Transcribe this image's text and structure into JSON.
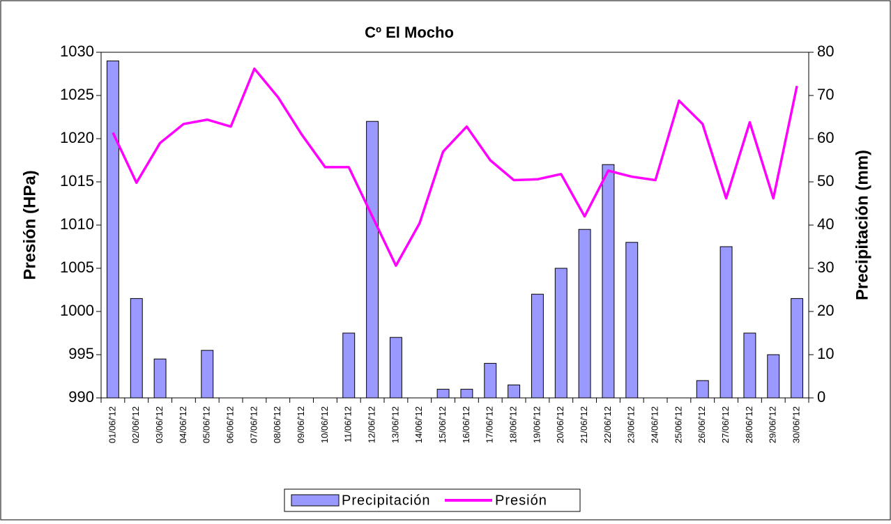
{
  "chart_data": {
    "type": "combo",
    "title": "Cº El Mocho",
    "y_label": "Presión (HPa)",
    "y2_label": "Precipitación (mm)",
    "categories": [
      "01/06/'12",
      "02/06/'12",
      "03/06/'12",
      "04/06/'12",
      "05/06/'12",
      "06/06/'12",
      "07/06/'12",
      "08/06/'12",
      "09/06/'12",
      "10/06/'12",
      "11/06/'12",
      "12/06/'12",
      "13/06/'12",
      "14/06/'12",
      "15/06/'12",
      "16/06/'12",
      "17/06/'12",
      "18/06/'12",
      "19/06/'12",
      "20/06/'12",
      "21/06/'12",
      "22/06/'12",
      "23/06/'12",
      "24/06/'12",
      "25/06/'12",
      "26/06/'12",
      "27/06/'12",
      "28/06/'12",
      "29/06/'12",
      "30/06/'12"
    ],
    "series": [
      {
        "name": "Precipitación",
        "type": "bar",
        "axis": "y2",
        "color": "#9999ff",
        "values": [
          78,
          23,
          9,
          0,
          11,
          0,
          0,
          0,
          0,
          0,
          15,
          64,
          14,
          0,
          2,
          2,
          8,
          3,
          24,
          30,
          39,
          54,
          36,
          0,
          0,
          4,
          35,
          15,
          10,
          23
        ]
      },
      {
        "name": "Presión",
        "type": "line",
        "axis": "y",
        "color": "#ff00ff",
        "values": [
          1020.7,
          1014.9,
          1019.5,
          1021.7,
          1022.2,
          1021.4,
          1028.1,
          1024.8,
          1020.5,
          1016.7,
          1016.7,
          1011.0,
          1005.3,
          1010.2,
          1018.5,
          1021.4,
          1017.5,
          1015.2,
          1015.3,
          1015.9,
          1011.0,
          1016.3,
          1015.6,
          1015.2,
          1024.4,
          1021.7,
          1013.1,
          1021.9,
          1013.1,
          1026.1
        ]
      }
    ],
    "ylim": [
      990,
      1030
    ],
    "yticks": [
      990,
      995,
      1000,
      1005,
      1010,
      1015,
      1020,
      1025,
      1030
    ],
    "y2lim": [
      0,
      80
    ],
    "y2ticks": [
      0,
      10,
      20,
      30,
      40,
      50,
      60,
      70,
      80
    ],
    "legend": "bottom"
  }
}
